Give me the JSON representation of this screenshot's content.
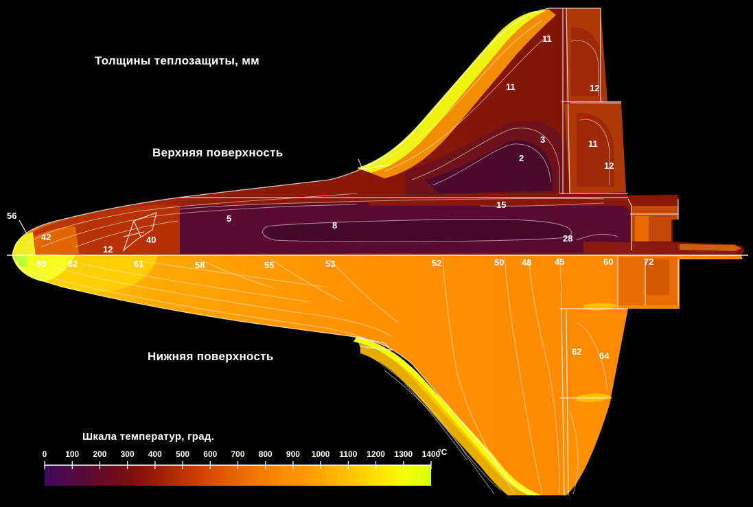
{
  "titles": {
    "main": "Толщины теплозащиты, мм",
    "upper": "Верхняя поверхность",
    "lower": "Нижняя поверхность"
  },
  "scale": {
    "title": "Шкала температур, град.",
    "ticks": [
      "0",
      "100",
      "200",
      "300",
      "400",
      "500",
      "600",
      "700",
      "800",
      "900",
      "1000",
      "1100",
      "1200",
      "1300",
      "1400"
    ],
    "unit": "°C",
    "colors": [
      "#3e0a5a",
      "#5a0a3a",
      "#7a0e0e",
      "#a02008",
      "#c83a00",
      "#e25800",
      "#f07400",
      "#ff8c00",
      "#ff9a00",
      "#ffae00",
      "#ffc400",
      "#ffdf00",
      "#f4ff00",
      "#d8ff10"
    ]
  },
  "upper_labels": [
    {
      "text": "56"
    },
    {
      "text": "42"
    },
    {
      "text": "12"
    },
    {
      "text": "40"
    },
    {
      "text": "5"
    },
    {
      "text": "8"
    },
    {
      "text": "2"
    },
    {
      "text": "3"
    },
    {
      "text": "11"
    },
    {
      "text": "11"
    },
    {
      "text": "12"
    },
    {
      "text": "11"
    },
    {
      "text": "12"
    },
    {
      "text": "15"
    },
    {
      "text": "28"
    }
  ],
  "lower_labels": [
    {
      "text": "69"
    },
    {
      "text": "62"
    },
    {
      "text": "61"
    },
    {
      "text": "58"
    },
    {
      "text": "55"
    },
    {
      "text": "53"
    },
    {
      "text": "52"
    },
    {
      "text": "50"
    },
    {
      "text": "48"
    },
    {
      "text": "45"
    },
    {
      "text": "60"
    },
    {
      "text": "72"
    },
    {
      "text": "62"
    },
    {
      "text": "64"
    }
  ],
  "colors": {
    "background": "#000000",
    "upper_hot": "#5a0a30",
    "upper_warm": "#8a1a08",
    "lower_base": "#ff8800",
    "leading_edge": "#f4ff10"
  }
}
